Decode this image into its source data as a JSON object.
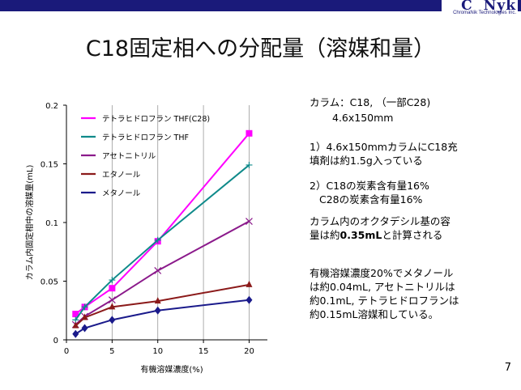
{
  "header": {
    "logo_text": "C   Nyk",
    "logo_subtext": "ChromaNik Technologies Inc."
  },
  "slide": {
    "title": "C18固定相への分配量（溶媒和量）",
    "page_number": "7"
  },
  "notes": {
    "column_line1": "カラム：C18, （一部C28)",
    "column_line2": "4.6x150mm",
    "point1_line1": "1）4.6x150mmカラムにC18充",
    "point1_line2": "填剤は約1.5g入っている",
    "point2_line1": "2）C18の炭素含有量16%",
    "point2_line2": "C28の炭素含有量16%",
    "point3_line1": "カラム内のオクタデシル基の容",
    "point3_line2_pre": "量は約",
    "point3_line2_bold": "0.35mL",
    "point3_line2_post": "と計算される",
    "summary_line1": "有機溶媒濃度20%でメタノール",
    "summary_line2": "は約0.04mL, アセトニトリルは",
    "summary_line3": "約0.1mL, テトラヒドロフランは",
    "summary_line4": "約0.15mL溶媒和している。"
  },
  "chart_data": {
    "type": "line",
    "xlabel": "有機溶媒濃度(%)",
    "ylabel": "カラム内固定相中の溶媒量(mL)",
    "xlim": [
      0,
      22
    ],
    "ylim": [
      0,
      0.2
    ],
    "x_ticks": [
      0,
      5,
      10,
      15,
      20
    ],
    "x_tick_labels": [
      "0",
      "5",
      "10",
      "15",
      "20"
    ],
    "y_ticks": [
      0,
      0.05,
      0.1,
      0.15,
      0.2
    ],
    "y_tick_labels": [
      "0",
      "0.05",
      "0.1",
      "0.15",
      "0.2"
    ],
    "grid": "vertical",
    "legend_position": "top-left",
    "x": [
      1,
      2,
      5,
      10,
      20
    ],
    "series": [
      {
        "name": "テトラヒドロフラン THF(C28)",
        "color": "#ff00ff",
        "marker": "square",
        "values": [
          0.022,
          0.028,
          0.044,
          0.084,
          0.176
        ]
      },
      {
        "name": "テトラヒドロフラン THF",
        "color": "#0f8a8a",
        "marker": "plus",
        "values": [
          0.017,
          0.028,
          0.051,
          0.085,
          0.149
        ]
      },
      {
        "name": "アセトニトリル",
        "color": "#8b1a8b",
        "marker": "x",
        "values": [
          0.013,
          0.02,
          0.034,
          0.059,
          0.101
        ]
      },
      {
        "name": "エタノール",
        "color": "#8b1a1a",
        "marker": "triangle",
        "values": [
          0.012,
          0.019,
          0.028,
          0.033,
          0.047
        ]
      },
      {
        "name": "メタノール",
        "color": "#1a1a8b",
        "marker": "diamond",
        "values": [
          0.005,
          0.01,
          0.017,
          0.025,
          0.034
        ]
      }
    ]
  }
}
